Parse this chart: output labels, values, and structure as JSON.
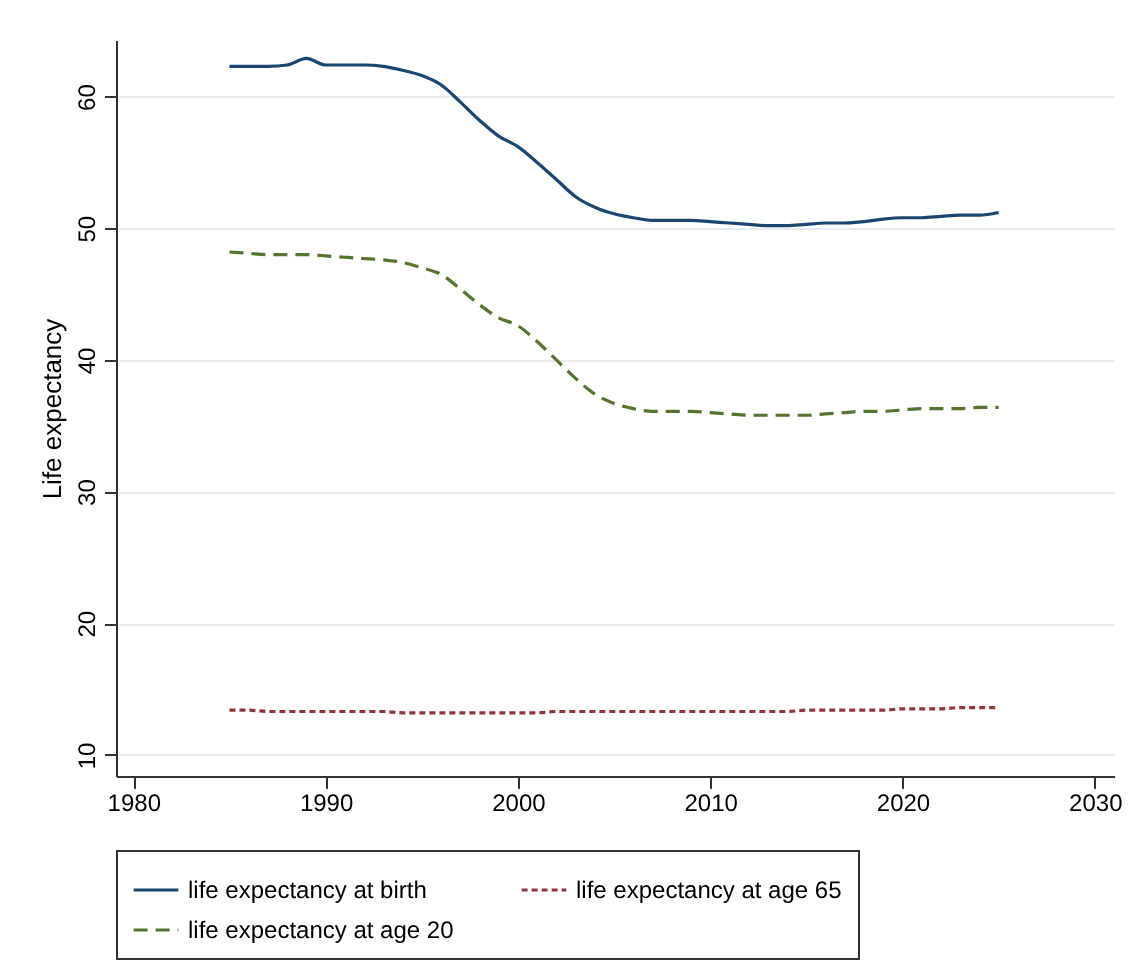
{
  "chart_data": {
    "type": "line",
    "ylabel": "Life expectancy",
    "x": [
      1985,
      1986,
      1987,
      1988,
      1989,
      1990,
      1991,
      1992,
      1993,
      1994,
      1995,
      1996,
      1997,
      1998,
      1999,
      2000,
      2001,
      2002,
      2003,
      2004,
      2005,
      2006,
      2007,
      2008,
      2009,
      2010,
      2011,
      2012,
      2013,
      2014,
      2015,
      2016,
      2017,
      2018,
      2019,
      2020,
      2021,
      2022,
      2023,
      2024,
      2025
    ],
    "series": [
      {
        "name": "life expectancy at birth",
        "color": "#1a476f",
        "line_style": "solid",
        "values": [
          62.3,
          62.3,
          62.3,
          62.4,
          62.9,
          62.4,
          62.4,
          62.4,
          62.3,
          62.0,
          61.6,
          60.9,
          59.6,
          58.2,
          57.0,
          56.2,
          55.0,
          53.7,
          52.4,
          51.6,
          51.1,
          50.8,
          50.6,
          50.6,
          50.6,
          50.5,
          50.4,
          50.3,
          50.2,
          50.2,
          50.3,
          50.4,
          50.4,
          50.5,
          50.7,
          50.8,
          50.8,
          50.9,
          51.0,
          51.0,
          51.2
        ]
      },
      {
        "name": "life expectancy at age 65",
        "color": "#90353b",
        "line_style": "dotted",
        "values": [
          13.4,
          13.4,
          13.3,
          13.3,
          13.3,
          13.3,
          13.3,
          13.3,
          13.3,
          13.2,
          13.2,
          13.2,
          13.2,
          13.2,
          13.2,
          13.2,
          13.2,
          13.3,
          13.3,
          13.3,
          13.3,
          13.3,
          13.3,
          13.3,
          13.3,
          13.3,
          13.3,
          13.3,
          13.3,
          13.3,
          13.4,
          13.4,
          13.4,
          13.4,
          13.4,
          13.5,
          13.5,
          13.5,
          13.6,
          13.6,
          13.6
        ]
      },
      {
        "name": "life expectancy at age 20",
        "color": "#55752f",
        "line_style": "dashed",
        "values": [
          48.2,
          48.1,
          48.0,
          48.0,
          48.0,
          47.9,
          47.8,
          47.7,
          47.6,
          47.4,
          47.0,
          46.5,
          45.4,
          44.2,
          43.2,
          42.6,
          41.4,
          40.0,
          38.6,
          37.4,
          36.7,
          36.3,
          36.1,
          36.1,
          36.1,
          36.0,
          35.9,
          35.8,
          35.8,
          35.8,
          35.8,
          35.9,
          36.0,
          36.1,
          36.1,
          36.2,
          36.3,
          36.3,
          36.3,
          36.4,
          36.4
        ]
      }
    ],
    "xlim": [
      1979.1,
      2031
    ],
    "xticks": [
      1980,
      1990,
      2000,
      2010,
      2020,
      2030
    ],
    "ylim": [
      8.4,
      64.3
    ],
    "yticks": [
      10,
      20,
      30,
      40,
      50,
      60
    ],
    "grid": "y",
    "legend": "bottom"
  }
}
